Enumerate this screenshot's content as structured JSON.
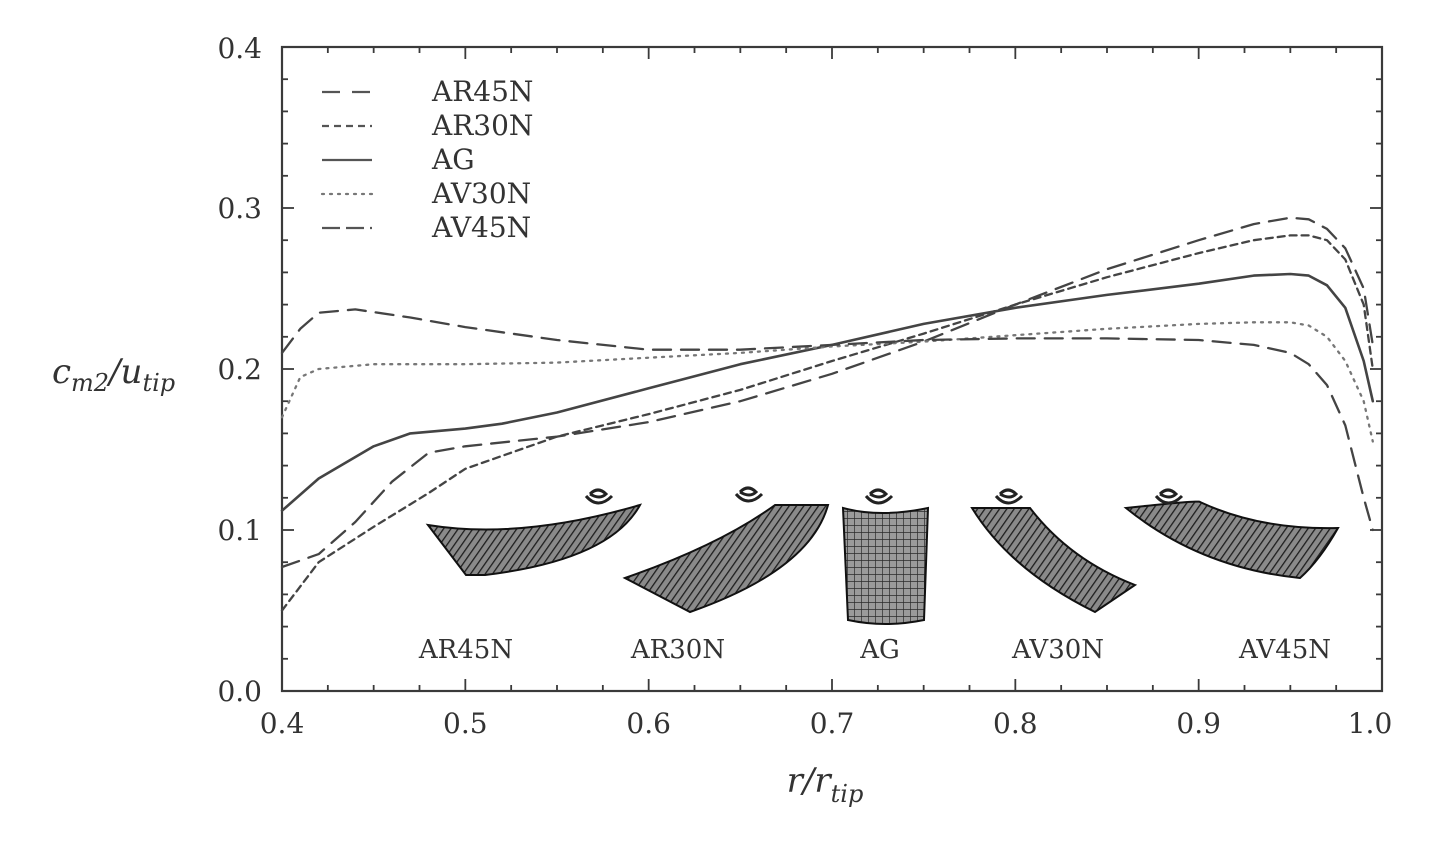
{
  "chart_data": {
    "type": "line",
    "xlabel": "r/r",
    "xlabel_sub": "tip",
    "ylabel_main": "c",
    "ylabel_sub1": "m2",
    "ylabel_mid": "/u",
    "ylabel_sub2": "tip",
    "xlim": [
      0.4,
      1.0
    ],
    "ylim": [
      0.0,
      0.4
    ],
    "x_ticks": [
      "0.4",
      "0.5",
      "0.6",
      "0.7",
      "0.8",
      "0.9",
      "1.0"
    ],
    "y_ticks": [
      "0.0",
      "0.1",
      "0.2",
      "0.3",
      "0.4"
    ],
    "grid": false,
    "legend_position": "top-left",
    "series": [
      {
        "name": "AR45N",
        "style": "long-dash",
        "x": [
          0.4,
          0.42,
          0.44,
          0.46,
          0.48,
          0.5,
          0.55,
          0.6,
          0.65,
          0.7,
          0.75,
          0.8,
          0.85,
          0.9,
          0.93,
          0.95,
          0.96,
          0.97,
          0.98,
          0.99,
          0.995
        ],
        "y": [
          0.077,
          0.085,
          0.105,
          0.13,
          0.148,
          0.152,
          0.158,
          0.167,
          0.18,
          0.197,
          0.217,
          0.24,
          0.262,
          0.28,
          0.29,
          0.294,
          0.293,
          0.287,
          0.275,
          0.25,
          0.215
        ]
      },
      {
        "name": "AR30N",
        "style": "short-dash",
        "x": [
          0.4,
          0.42,
          0.45,
          0.48,
          0.5,
          0.55,
          0.6,
          0.65,
          0.7,
          0.75,
          0.8,
          0.85,
          0.9,
          0.93,
          0.95,
          0.96,
          0.97,
          0.98,
          0.99,
          0.995
        ],
        "y": [
          0.05,
          0.08,
          0.102,
          0.123,
          0.138,
          0.158,
          0.172,
          0.187,
          0.205,
          0.222,
          0.24,
          0.257,
          0.272,
          0.28,
          0.283,
          0.283,
          0.28,
          0.268,
          0.24,
          0.2
        ]
      },
      {
        "name": "AG",
        "style": "solid",
        "x": [
          0.4,
          0.42,
          0.45,
          0.47,
          0.5,
          0.52,
          0.55,
          0.6,
          0.65,
          0.7,
          0.75,
          0.8,
          0.85,
          0.9,
          0.93,
          0.95,
          0.96,
          0.97,
          0.98,
          0.99,
          0.995
        ],
        "y": [
          0.112,
          0.132,
          0.152,
          0.16,
          0.163,
          0.166,
          0.173,
          0.188,
          0.203,
          0.215,
          0.228,
          0.238,
          0.246,
          0.253,
          0.258,
          0.259,
          0.258,
          0.252,
          0.238,
          0.205,
          0.18
        ]
      },
      {
        "name": "AV30N",
        "style": "dotted",
        "x": [
          0.4,
          0.41,
          0.42,
          0.45,
          0.5,
          0.55,
          0.6,
          0.65,
          0.7,
          0.75,
          0.8,
          0.85,
          0.9,
          0.93,
          0.95,
          0.96,
          0.97,
          0.98,
          0.99,
          0.995
        ],
        "y": [
          0.17,
          0.195,
          0.2,
          0.203,
          0.203,
          0.204,
          0.207,
          0.21,
          0.214,
          0.217,
          0.221,
          0.225,
          0.228,
          0.229,
          0.229,
          0.227,
          0.22,
          0.205,
          0.18,
          0.155
        ]
      },
      {
        "name": "AV45N",
        "style": "long-dash",
        "x": [
          0.4,
          0.41,
          0.42,
          0.44,
          0.47,
          0.5,
          0.55,
          0.6,
          0.65,
          0.7,
          0.75,
          0.8,
          0.85,
          0.9,
          0.93,
          0.95,
          0.96,
          0.97,
          0.98,
          0.99,
          0.995
        ],
        "y": [
          0.21,
          0.225,
          0.235,
          0.237,
          0.232,
          0.226,
          0.218,
          0.212,
          0.212,
          0.215,
          0.218,
          0.219,
          0.219,
          0.218,
          0.215,
          0.21,
          0.203,
          0.19,
          0.165,
          0.12,
          0.1
        ]
      }
    ],
    "blade_labels": [
      "AR45N",
      "AR30N",
      "AG",
      "AV30N",
      "AV45N"
    ]
  }
}
